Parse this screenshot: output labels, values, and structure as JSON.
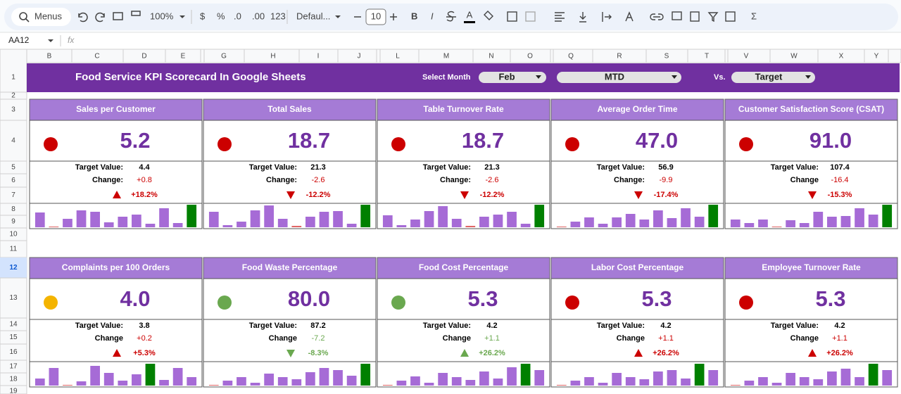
{
  "toolbar": {
    "search": "Menus",
    "zoom": "100%",
    "currency": "$",
    "percent": "%",
    "decrease_decimals": ".0",
    "increase_decimals": ".00",
    "number_format": "123",
    "font": "Defaul...",
    "font_size": "10",
    "bold": "B",
    "italic": "I",
    "text_color": "A",
    "sum": "Σ"
  },
  "formula_bar": {
    "cell_ref": "AA12",
    "fx": "fx"
  },
  "columns": [
    "B",
    "C",
    "D",
    "E",
    "G",
    "H",
    "I",
    "J",
    "L",
    "M",
    "N",
    "O",
    "Q",
    "R",
    "S",
    "T",
    "V",
    "W",
    "X",
    "Y"
  ],
  "rows": [
    "1",
    "2",
    "3",
    "4",
    "5",
    "6",
    "7",
    "8",
    "9",
    "10",
    "11",
    "12",
    "13",
    "14",
    "15",
    "16",
    "17",
    "18",
    "19"
  ],
  "dashboard": {
    "title": "Food Service KPI Scorecard In Google Sheets",
    "select_month_label": "Select Month",
    "month": "Feb",
    "period": "MTD",
    "vs_label": "Vs.",
    "comparison": "Target"
  },
  "cards": [
    {
      "title": "Sales per Customer",
      "value": "5.2",
      "status_color": "#cc0000",
      "target_label": "Target Value:",
      "target": "4.4",
      "change_label": "Change:",
      "change": "+0.8",
      "arrow": "up",
      "arrow_color": "#cc0000",
      "change_pct": "+18.2%",
      "change_color": "#cc0000",
      "trend": [
        21,
        1,
        12,
        24,
        22,
        7,
        15,
        18,
        5,
        27,
        6,
        32
      ],
      "trend_colors": [
        "#a66bd6",
        "#e06666",
        "#a66bd6",
        "#a66bd6",
        "#a66bd6",
        "#a66bd6",
        "#a66bd6",
        "#a66bd6",
        "#a66bd6",
        "#a66bd6",
        "#a66bd6",
        "#008000"
      ]
    },
    {
      "title": "Total Sales",
      "value": "18.7",
      "status_color": "#cc0000",
      "target_label": "Target Value:",
      "target": "21.3",
      "change_label": "Change:",
      "change": "-2.6",
      "arrow": "down",
      "arrow_color": "#cc0000",
      "change_pct": "-12.2%",
      "change_color": "#cc0000",
      "trend": [
        22,
        3,
        8,
        24,
        31,
        12,
        2,
        15,
        22,
        23,
        5,
        32
      ],
      "trend_colors": [
        "#a66bd6",
        "#a66bd6",
        "#a66bd6",
        "#a66bd6",
        "#a66bd6",
        "#a66bd6",
        "#e06666",
        "#a66bd6",
        "#a66bd6",
        "#a66bd6",
        "#a66bd6",
        "#008000"
      ]
    },
    {
      "title": "Table Turnover Rate",
      "value": "18.7",
      "status_color": "#cc0000",
      "target_label": "Target Value:",
      "target": "21.3",
      "change_label": "Change:",
      "change": "-2.6",
      "arrow": "down",
      "arrow_color": "#cc0000",
      "change_pct": "-12.2%",
      "change_color": "#cc0000",
      "trend": [
        17,
        3,
        11,
        23,
        30,
        12,
        2,
        15,
        18,
        22,
        5,
        32
      ],
      "trend_colors": [
        "#a66bd6",
        "#a66bd6",
        "#a66bd6",
        "#a66bd6",
        "#a66bd6",
        "#a66bd6",
        "#e06666",
        "#a66bd6",
        "#a66bd6",
        "#a66bd6",
        "#a66bd6",
        "#008000"
      ]
    },
    {
      "title": "Average Order Time",
      "value": "47.0",
      "status_color": "#cc0000",
      "target_label": "Target Value:",
      "target": "56.9",
      "change_label": "Change:",
      "change": "-9.9",
      "arrow": "down",
      "arrow_color": "#cc0000",
      "change_pct": "-17.4%",
      "change_color": "#cc0000",
      "trend": [
        1,
        8,
        14,
        5,
        14,
        19,
        11,
        24,
        13,
        27,
        15,
        32
      ],
      "trend_colors": [
        "#e06666",
        "#a66bd6",
        "#a66bd6",
        "#a66bd6",
        "#a66bd6",
        "#a66bd6",
        "#a66bd6",
        "#a66bd6",
        "#a66bd6",
        "#a66bd6",
        "#a66bd6",
        "#008000"
      ]
    },
    {
      "title": "Customer Satisfaction Score (CSAT)",
      "value": "91.0",
      "status_color": "#cc0000",
      "target_label": "Target Value:",
      "target": "107.4",
      "change_label": "Change",
      "change": "-16.4",
      "arrow": "down",
      "arrow_color": "#cc0000",
      "change_pct": "-15.3%",
      "change_color": "#cc0000",
      "trend": [
        11,
        6,
        11,
        1,
        10,
        6,
        22,
        15,
        16,
        27,
        18,
        32
      ],
      "trend_colors": [
        "#a66bd6",
        "#a66bd6",
        "#a66bd6",
        "#e06666",
        "#a66bd6",
        "#a66bd6",
        "#a66bd6",
        "#a66bd6",
        "#a66bd6",
        "#a66bd6",
        "#a66bd6",
        "#008000"
      ]
    },
    {
      "title": "Complaints per 100 Orders",
      "value": "4.0",
      "status_color": "#f4b400",
      "target_label": "Target Value:",
      "target": "3.8",
      "change_label": "Change",
      "change": "+0.2",
      "arrow": "up",
      "arrow_color": "#cc0000",
      "change_pct": "+5.3%",
      "change_color": "#cc0000",
      "trend": [
        10,
        25,
        1,
        6,
        28,
        18,
        7,
        16,
        31,
        8,
        25,
        12
      ],
      "trend_colors": [
        "#a66bd6",
        "#a66bd6",
        "#e06666",
        "#a66bd6",
        "#a66bd6",
        "#a66bd6",
        "#a66bd6",
        "#a66bd6",
        "#008000",
        "#a66bd6",
        "#a66bd6",
        "#a66bd6"
      ]
    },
    {
      "title": "Food Waste Percentage",
      "value": "80.0",
      "status_color": "#6aa84f",
      "target_label": "Target Value:",
      "target": "87.2",
      "change_label": "Change",
      "change": "-7.2",
      "arrow": "down",
      "arrow_color": "#6aa84f",
      "change_pct": "-8.3%",
      "change_color": "#6aa84f",
      "trend": [
        1,
        7,
        12,
        4,
        17,
        12,
        9,
        19,
        25,
        22,
        14,
        31
      ],
      "trend_colors": [
        "#e06666",
        "#a66bd6",
        "#a66bd6",
        "#a66bd6",
        "#a66bd6",
        "#a66bd6",
        "#a66bd6",
        "#a66bd6",
        "#a66bd6",
        "#a66bd6",
        "#a66bd6",
        "#008000"
      ]
    },
    {
      "title": "Food Cost Percentage",
      "value": "5.3",
      "status_color": "#6aa84f",
      "target_label": "Target Value:",
      "target": "4.2",
      "change_label": "Change",
      "change": "+1.1",
      "arrow": "up",
      "arrow_color": "#6aa84f",
      "change_pct": "+26.2%",
      "change_color": "#6aa84f",
      "trend": [
        1,
        7,
        13,
        4,
        18,
        12,
        8,
        20,
        10,
        26,
        31,
        22
      ],
      "trend_colors": [
        "#e06666",
        "#a66bd6",
        "#a66bd6",
        "#a66bd6",
        "#a66bd6",
        "#a66bd6",
        "#a66bd6",
        "#a66bd6",
        "#a66bd6",
        "#a66bd6",
        "#008000",
        "#a66bd6"
      ]
    },
    {
      "title": "Labor Cost Percentage",
      "value": "5.3",
      "status_color": "#cc0000",
      "target_label": "Target Value:",
      "target": "4.2",
      "change_label": "Change",
      "change": "+1.1",
      "arrow": "up",
      "arrow_color": "#cc0000",
      "change_pct": "+26.2%",
      "change_color": "#cc0000",
      "trend": [
        1,
        7,
        12,
        4,
        18,
        12,
        9,
        20,
        22,
        10,
        31,
        22
      ],
      "trend_colors": [
        "#e06666",
        "#a66bd6",
        "#a66bd6",
        "#a66bd6",
        "#a66bd6",
        "#a66bd6",
        "#a66bd6",
        "#a66bd6",
        "#a66bd6",
        "#a66bd6",
        "#008000",
        "#a66bd6"
      ]
    },
    {
      "title": "Employee Turnover Rate",
      "value": "5.3",
      "status_color": "#cc0000",
      "target_label": "Target Value:",
      "target": "4.2",
      "change_label": "Change",
      "change": "+1.1",
      "arrow": "up",
      "arrow_color": "#cc0000",
      "change_pct": "+26.2%",
      "change_color": "#cc0000",
      "trend": [
        1,
        7,
        12,
        4,
        18,
        12,
        9,
        20,
        24,
        12,
        31,
        22
      ],
      "trend_colors": [
        "#e06666",
        "#a66bd6",
        "#a66bd6",
        "#a66bd6",
        "#a66bd6",
        "#a66bd6",
        "#a66bd6",
        "#a66bd6",
        "#a66bd6",
        "#a66bd6",
        "#008000",
        "#a66bd6"
      ]
    }
  ]
}
